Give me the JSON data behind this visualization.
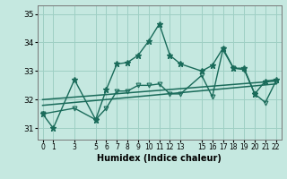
{
  "xlabel": "Humidex (Indice chaleur)",
  "ylabel": "",
  "bg_color": "#c5e8e0",
  "line_color": "#1a6b5a",
  "grid_color": "#9ecfc4",
  "xlim": [
    -0.5,
    22.5
  ],
  "ylim": [
    30.6,
    35.3
  ],
  "yticks": [
    31,
    32,
    33,
    34,
    35
  ],
  "xticks": [
    0,
    1,
    3,
    5,
    6,
    7,
    8,
    9,
    10,
    11,
    12,
    13,
    15,
    16,
    17,
    18,
    19,
    20,
    21,
    22
  ],
  "upper_line": {
    "x": [
      0,
      1,
      3,
      5,
      6,
      7,
      8,
      9,
      10,
      11,
      12,
      13,
      15,
      16,
      17,
      18,
      19,
      20,
      21,
      22
    ],
    "y": [
      31.5,
      31.0,
      32.7,
      31.3,
      32.35,
      33.25,
      33.3,
      33.55,
      34.05,
      34.65,
      33.55,
      33.25,
      33.0,
      33.2,
      33.8,
      33.1,
      33.1,
      32.2,
      32.65,
      32.7
    ]
  },
  "lower_line": {
    "x": [
      0,
      3,
      5,
      6,
      7,
      8,
      9,
      10,
      11,
      12,
      13,
      15,
      16,
      17,
      18,
      19,
      20,
      21,
      22
    ],
    "y": [
      31.5,
      31.7,
      31.3,
      31.7,
      32.3,
      32.3,
      32.5,
      32.5,
      32.55,
      32.2,
      32.2,
      32.85,
      32.1,
      33.75,
      33.1,
      33.05,
      32.2,
      31.9,
      32.65
    ]
  },
  "trend1": {
    "x": [
      0,
      22
    ],
    "y": [
      31.8,
      32.55
    ]
  },
  "trend2": {
    "x": [
      0,
      22
    ],
    "y": [
      32.0,
      32.65
    ]
  }
}
